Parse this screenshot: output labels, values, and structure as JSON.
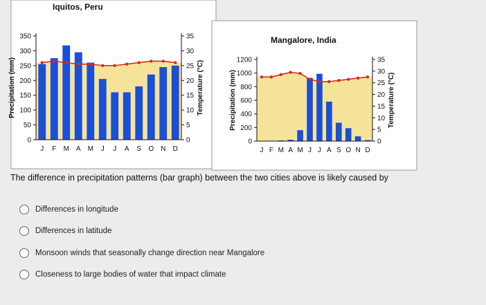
{
  "question": "The difference in precipitation patterns (bar graph) between the two cities above is likely caused by",
  "options": [
    "Differences in longitude",
    "Differences in latitude",
    "Monsoon winds that seasonally change direction near Mangalore",
    "Closeness to large bodies of water that impact climate"
  ],
  "colors": {
    "bar": "#1b4fd6",
    "temp_line": "#d92a1a",
    "temp_band": "#f6e39a",
    "chart_bg": "#ffffff",
    "page_bg": "#ececec"
  },
  "chart_data": [
    {
      "type": "bar",
      "title": "Iquitos, Peru",
      "categories": [
        "J",
        "F",
        "M",
        "A",
        "M",
        "J",
        "J",
        "A",
        "S",
        "O",
        "N",
        "D"
      ],
      "xlabel": "",
      "ylabel": "Precipitation (mm)",
      "ylim": [
        0,
        350
      ],
      "yticks": [
        0,
        50,
        100,
        150,
        200,
        250,
        300,
        350
      ],
      "y2label": "Temperature (°C)",
      "y2lim": [
        0,
        35
      ],
      "y2ticks": [
        0,
        5,
        10,
        15,
        20,
        25,
        30,
        35
      ],
      "series": [
        {
          "type": "bar",
          "axis": "left",
          "values": [
            255,
            275,
            318,
            295,
            260,
            205,
            160,
            160,
            180,
            220,
            245,
            250
          ]
        },
        {
          "type": "line",
          "axis": "right",
          "values": [
            26,
            26.5,
            26,
            25.5,
            25.5,
            25,
            25,
            25.5,
            26,
            26.5,
            26.5,
            26
          ]
        }
      ],
      "grid": false
    },
    {
      "type": "bar",
      "title": "Mangalore, India",
      "categories": [
        "J",
        "F",
        "M",
        "A",
        "M",
        "J",
        "J",
        "A",
        "S",
        "O",
        "N",
        "D"
      ],
      "xlabel": "",
      "ylabel": "Precipitation (mm)",
      "ylim": [
        0,
        1200
      ],
      "yticks": [
        0,
        200,
        400,
        600,
        800,
        1000,
        1200
      ],
      "y2label": "Temperature (°C)",
      "y2lim": [
        0,
        35
      ],
      "y2ticks": [
        0,
        5,
        10,
        15,
        20,
        25,
        30,
        35
      ],
      "series": [
        {
          "type": "bar",
          "axis": "left",
          "values": [
            5,
            5,
            10,
            20,
            160,
            930,
            990,
            580,
            270,
            190,
            70,
            15
          ]
        },
        {
          "type": "line",
          "axis": "right",
          "values": [
            27.5,
            27.5,
            28.5,
            29.5,
            29,
            26.5,
            25.5,
            25.5,
            26,
            26.5,
            27,
            27.5
          ]
        }
      ],
      "grid": false
    }
  ]
}
